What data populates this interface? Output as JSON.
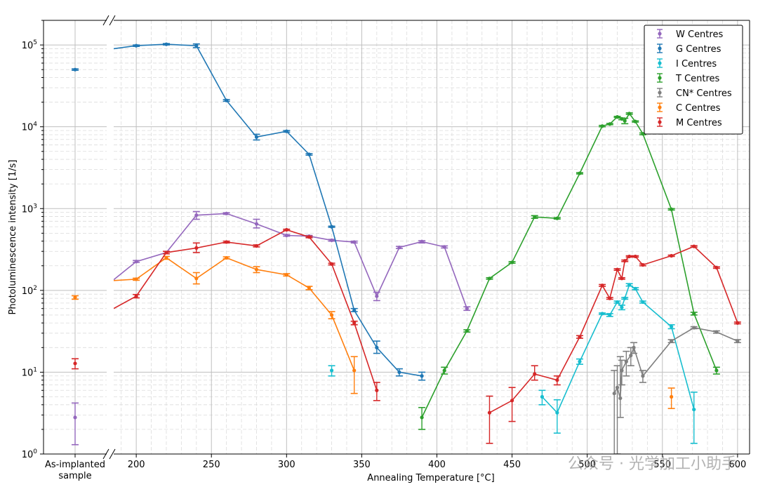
{
  "chart_data": {
    "type": "line",
    "ylabel": "Photoluminescence intensity [1/s]",
    "xlabel": "Annealing Temperature [°C]",
    "y_scale": "log",
    "ylim": [
      1,
      200000
    ],
    "xlim": [
      185,
      608
    ],
    "x_ticks": [
      200,
      250,
      300,
      350,
      400,
      450,
      500,
      550,
      600
    ],
    "x_tick_labels": [
      "200",
      "250",
      "300",
      "350",
      "400",
      "450",
      "500",
      "550",
      "600"
    ],
    "y_ticks": [
      1,
      10,
      100,
      1000,
      10000,
      100000
    ],
    "y_tick_bases": [
      "10",
      "10",
      "10",
      "10",
      "10",
      "10"
    ],
    "y_tick_exponents": [
      "0",
      "1",
      "2",
      "3",
      "4",
      "5"
    ],
    "as_implanted_label_line1": "As-implanted",
    "as_implanted_label_line2": "sample",
    "grid": true,
    "legend_position": "top-right",
    "watermark_text": "公众号 · 光学加工小助手",
    "series": [
      {
        "name": "W Centres",
        "color": "#9467bd",
        "as_implanted": {
          "y": 2.8,
          "lo": 1.3,
          "hi": 4.2
        },
        "points": [
          {
            "x": 185,
            "y": 135
          },
          {
            "x": 200,
            "y": 225,
            "lo": 220,
            "hi": 232
          },
          {
            "x": 220,
            "y": 290,
            "lo": 280,
            "hi": 300
          },
          {
            "x": 240,
            "y": 830,
            "lo": 740,
            "hi": 920
          },
          {
            "x": 260,
            "y": 870,
            "lo": 850,
            "hi": 890
          },
          {
            "x": 280,
            "y": 650,
            "lo": 580,
            "hi": 740
          },
          {
            "x": 300,
            "y": 470,
            "lo": 460,
            "hi": 480
          },
          {
            "x": 315,
            "y": 460,
            "lo": 450,
            "hi": 470
          },
          {
            "x": 330,
            "y": 410,
            "lo": 400,
            "hi": 420
          },
          {
            "x": 345,
            "y": 390,
            "lo": 380,
            "hi": 400
          },
          {
            "x": 360,
            "y": 85,
            "lo": 75,
            "hi": 95
          },
          {
            "x": 375,
            "y": 335,
            "lo": 325,
            "hi": 345
          },
          {
            "x": 390,
            "y": 395,
            "lo": 380,
            "hi": 405
          },
          {
            "x": 405,
            "y": 340,
            "lo": 330,
            "hi": 350
          },
          {
            "x": 420,
            "y": 60,
            "lo": 57,
            "hi": 63
          }
        ]
      },
      {
        "name": "G Centres",
        "color": "#1f77b4",
        "as_implanted": {
          "y": 50000,
          "lo": 49000,
          "hi": 51000
        },
        "points": [
          {
            "x": 185,
            "y": 90000
          },
          {
            "x": 200,
            "y": 98000,
            "lo": 96000,
            "hi": 100000
          },
          {
            "x": 220,
            "y": 102000,
            "lo": 100000,
            "hi": 104000
          },
          {
            "x": 240,
            "y": 98000,
            "lo": 93000,
            "hi": 103000
          },
          {
            "x": 260,
            "y": 21000,
            "lo": 20500,
            "hi": 21500
          },
          {
            "x": 280,
            "y": 7500,
            "lo": 6900,
            "hi": 8100
          },
          {
            "x": 300,
            "y": 8800,
            "lo": 8600,
            "hi": 9000
          },
          {
            "x": 315,
            "y": 4600,
            "lo": 4500,
            "hi": 4700
          },
          {
            "x": 330,
            "y": 600,
            "lo": 590,
            "hi": 610
          },
          {
            "x": 345,
            "y": 57,
            "lo": 55,
            "hi": 60
          },
          {
            "x": 360,
            "y": 20,
            "lo": 17,
            "hi": 24
          },
          {
            "x": 375,
            "y": 10,
            "lo": 9,
            "hi": 11
          },
          {
            "x": 390,
            "y": 9,
            "lo": 8,
            "hi": 10
          }
        ]
      },
      {
        "name": "I Centres",
        "color": "#17becf",
        "as_implanted": null,
        "points": [
          {
            "x": 330,
            "y": 10.5,
            "lo": 9,
            "hi": 12
          },
          {
            "x": 470,
            "y": 5,
            "lo": 4,
            "hi": 6,
            "gap_before": true
          },
          {
            "x": 480,
            "y": 3.2,
            "lo": 1.8,
            "hi": 4.6
          },
          {
            "x": 495,
            "y": 13.5,
            "lo": 12.5,
            "hi": 14.5
          },
          {
            "x": 510,
            "y": 52,
            "lo": 51,
            "hi": 53
          },
          {
            "x": 515,
            "y": 50,
            "lo": 48,
            "hi": 52
          },
          {
            "x": 520,
            "y": 72,
            "lo": 70,
            "hi": 74
          },
          {
            "x": 523,
            "y": 62,
            "lo": 58,
            "hi": 66
          },
          {
            "x": 525,
            "y": 80,
            "lo": 78,
            "hi": 82
          },
          {
            "x": 528,
            "y": 117,
            "lo": 113,
            "hi": 121
          },
          {
            "x": 532,
            "y": 105,
            "lo": 102,
            "hi": 108
          },
          {
            "x": 537,
            "y": 72,
            "lo": 70,
            "hi": 74
          },
          {
            "x": 556,
            "y": 36,
            "lo": 34,
            "hi": 38
          },
          {
            "x": 571,
            "y": 3.5,
            "lo": 1.35,
            "hi": 5.7
          }
        ]
      },
      {
        "name": "T Centres",
        "color": "#2ca02c",
        "as_implanted": null,
        "points": [
          {
            "x": 390,
            "y": 2.8,
            "lo": 2.0,
            "hi": 3.7
          },
          {
            "x": 405,
            "y": 10.5,
            "lo": 9.5,
            "hi": 11.5
          },
          {
            "x": 420,
            "y": 32,
            "lo": 31,
            "hi": 33
          },
          {
            "x": 435,
            "y": 140,
            "lo": 137,
            "hi": 143
          },
          {
            "x": 450,
            "y": 220,
            "lo": 215,
            "hi": 225
          },
          {
            "x": 465,
            "y": 790,
            "lo": 760,
            "hi": 820
          },
          {
            "x": 480,
            "y": 760,
            "lo": 745,
            "hi": 775
          },
          {
            "x": 495,
            "y": 2700,
            "lo": 2650,
            "hi": 2750
          },
          {
            "x": 510,
            "y": 10200,
            "lo": 10000,
            "hi": 10400
          },
          {
            "x": 515,
            "y": 10800,
            "lo": 10600,
            "hi": 11000
          },
          {
            "x": 520,
            "y": 13200,
            "lo": 13000,
            "hi": 13400
          },
          {
            "x": 523,
            "y": 12500,
            "lo": 12200,
            "hi": 12800
          },
          {
            "x": 525,
            "y": 11800,
            "lo": 10900,
            "hi": 12700
          },
          {
            "x": 528,
            "y": 14500,
            "lo": 14200,
            "hi": 14800
          },
          {
            "x": 532,
            "y": 11600,
            "lo": 11400,
            "hi": 11800
          },
          {
            "x": 537,
            "y": 8200,
            "lo": 8000,
            "hi": 8400
          },
          {
            "x": 556,
            "y": 980,
            "lo": 960,
            "hi": 1000
          },
          {
            "x": 571,
            "y": 52,
            "lo": 50,
            "hi": 54
          },
          {
            "x": 586,
            "y": 10.5,
            "lo": 9.5,
            "hi": 11.5
          }
        ]
      },
      {
        "name": "CN* Centres",
        "color": "#7f7f7f",
        "as_implanted": null,
        "points": [
          {
            "x": 518,
            "y": 5.5,
            "lo": 0.5,
            "hi": 10.5
          },
          {
            "x": 520,
            "y": 6.5,
            "lo": 1.0,
            "hi": 12
          },
          {
            "x": 522,
            "y": 4.8,
            "lo": 2.8,
            "hi": 15.5
          },
          {
            "x": 523,
            "y": 10.5,
            "lo": 7,
            "hi": 14
          },
          {
            "x": 526,
            "y": 13.5,
            "lo": 9,
            "hi": 18
          },
          {
            "x": 529,
            "y": 16,
            "lo": 12,
            "hi": 20
          },
          {
            "x": 531,
            "y": 20,
            "lo": 17,
            "hi": 23
          },
          {
            "x": 537,
            "y": 9,
            "lo": 7.5,
            "hi": 10.5
          },
          {
            "x": 556,
            "y": 24,
            "lo": 23,
            "hi": 25
          },
          {
            "x": 571,
            "y": 35,
            "lo": 34,
            "hi": 36
          },
          {
            "x": 586,
            "y": 31,
            "lo": 30,
            "hi": 32
          },
          {
            "x": 600,
            "y": 24,
            "lo": 23,
            "hi": 25
          }
        ]
      },
      {
        "name": "C Centres",
        "color": "#ff7f0e",
        "as_implanted": {
          "y": 82,
          "lo": 78,
          "hi": 86
        },
        "points": [
          {
            "x": 185,
            "y": 132
          },
          {
            "x": 200,
            "y": 137,
            "lo": 133,
            "hi": 141
          },
          {
            "x": 220,
            "y": 250,
            "lo": 240,
            "hi": 260
          },
          {
            "x": 240,
            "y": 140,
            "lo": 120,
            "hi": 165
          },
          {
            "x": 260,
            "y": 250,
            "lo": 243,
            "hi": 257
          },
          {
            "x": 280,
            "y": 180,
            "lo": 165,
            "hi": 195
          },
          {
            "x": 300,
            "y": 155,
            "lo": 150,
            "hi": 160
          },
          {
            "x": 315,
            "y": 107,
            "lo": 102,
            "hi": 112
          },
          {
            "x": 330,
            "y": 50,
            "lo": 45,
            "hi": 55
          },
          {
            "x": 345,
            "y": 10.5,
            "lo": 5.5,
            "hi": 15.5
          },
          {
            "x": 556,
            "y": 5,
            "lo": 3.6,
            "hi": 6.4,
            "gap_before": true
          }
        ]
      },
      {
        "name": "M Centres",
        "color": "#d62728",
        "as_implanted": {
          "y": 12.8,
          "lo": 11,
          "hi": 14.6
        },
        "points": [
          {
            "x": 185,
            "y": 60
          },
          {
            "x": 200,
            "y": 85,
            "lo": 81,
            "hi": 89
          },
          {
            "x": 220,
            "y": 290,
            "lo": 280,
            "hi": 300
          },
          {
            "x": 240,
            "y": 330,
            "lo": 290,
            "hi": 380
          },
          {
            "x": 260,
            "y": 390,
            "lo": 380,
            "hi": 400
          },
          {
            "x": 280,
            "y": 350,
            "lo": 340,
            "hi": 360
          },
          {
            "x": 300,
            "y": 550,
            "lo": 540,
            "hi": 560
          },
          {
            "x": 315,
            "y": 450,
            "lo": 440,
            "hi": 460
          },
          {
            "x": 330,
            "y": 210,
            "lo": 205,
            "hi": 215
          },
          {
            "x": 345,
            "y": 40,
            "lo": 38,
            "hi": 42
          },
          {
            "x": 360,
            "y": 6,
            "lo": 4.5,
            "hi": 7.5
          },
          {
            "x": 435,
            "y": 3.2,
            "lo": 1.35,
            "hi": 5.1,
            "gap_before": true
          },
          {
            "x": 450,
            "y": 4.5,
            "lo": 2.5,
            "hi": 6.5
          },
          {
            "x": 465,
            "y": 9.5,
            "lo": 8,
            "hi": 12
          },
          {
            "x": 480,
            "y": 8,
            "lo": 7,
            "hi": 9
          },
          {
            "x": 495,
            "y": 27,
            "lo": 26,
            "hi": 28
          },
          {
            "x": 510,
            "y": 115,
            "lo": 112,
            "hi": 118
          },
          {
            "x": 515,
            "y": 80,
            "lo": 78,
            "hi": 82
          },
          {
            "x": 520,
            "y": 180,
            "lo": 176,
            "hi": 184
          },
          {
            "x": 523,
            "y": 140,
            "lo": 137,
            "hi": 143
          },
          {
            "x": 525,
            "y": 230,
            "lo": 225,
            "hi": 235
          },
          {
            "x": 528,
            "y": 260,
            "lo": 255,
            "hi": 265
          },
          {
            "x": 532,
            "y": 260,
            "lo": 255,
            "hi": 265
          },
          {
            "x": 537,
            "y": 205,
            "lo": 200,
            "hi": 210
          },
          {
            "x": 556,
            "y": 265,
            "lo": 260,
            "hi": 270
          },
          {
            "x": 571,
            "y": 345,
            "lo": 338,
            "hi": 352
          },
          {
            "x": 586,
            "y": 190,
            "lo": 186,
            "hi": 194
          },
          {
            "x": 600,
            "y": 40,
            "lo": 39,
            "hi": 41
          }
        ]
      }
    ]
  }
}
